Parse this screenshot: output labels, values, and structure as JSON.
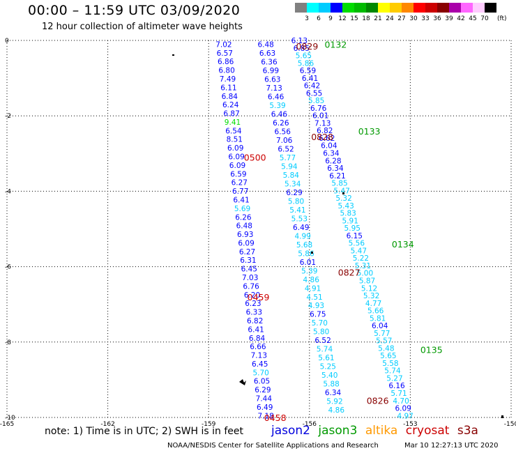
{
  "title": "00:00 – 11:59 UTC 03/09/2020",
  "subtitle": "12 hour collection of altimeter wave heights",
  "legend": {
    "colors": [
      "#808080",
      "#00ffff",
      "#00ccff",
      "#0000ff",
      "#00dd00",
      "#00bb00",
      "#008800",
      "#ffff00",
      "#ffcc00",
      "#ff8800",
      "#ff0000",
      "#cc0000",
      "#880000",
      "#aa00aa",
      "#ff66ff",
      "#ffccff",
      "#000000"
    ],
    "labels": [
      "3",
      "6",
      "9",
      "12",
      "15",
      "18",
      "21",
      "24",
      "27",
      "30",
      "33",
      "36",
      "39",
      "42",
      "45",
      "70"
    ],
    "unit": "(ft)"
  },
  "axes": {
    "x_ticks": [
      "-165",
      "-162",
      "-159",
      "-156",
      "-153",
      "-150"
    ],
    "y_ticks": [
      "0",
      "-2",
      "-4",
      "-6",
      "-8",
      "-10"
    ]
  },
  "satellite_colors": {
    "jason2": "#0000dd",
    "jason3": "#009900",
    "altika": "#ff9900",
    "cryosat": "#cc0000",
    "s3a": "#880000"
  },
  "time_labels": [
    {
      "text": "0132",
      "sat": "jason3",
      "lon": -155.55,
      "lat": -0.1
    },
    {
      "text": "0829",
      "sat": "s3a",
      "lon": -156.4,
      "lat": -0.15
    },
    {
      "text": "0133",
      "sat": "jason3",
      "lon": -154.55,
      "lat": -2.4
    },
    {
      "text": "0828",
      "sat": "s3a",
      "lon": -155.95,
      "lat": -2.55
    },
    {
      "text": "0500",
      "sat": "cryosat",
      "lon": -157.95,
      "lat": -3.1
    },
    {
      "text": "0134",
      "sat": "jason3",
      "lon": -153.55,
      "lat": -5.4
    },
    {
      "text": "0827",
      "sat": "s3a",
      "lon": -155.15,
      "lat": -6.15
    },
    {
      "text": "0459",
      "sat": "cryosat",
      "lon": -157.85,
      "lat": -6.8
    },
    {
      "text": "0135",
      "sat": "jason3",
      "lon": -152.7,
      "lat": -8.2
    },
    {
      "text": "0826",
      "sat": "s3a",
      "lon": -154.3,
      "lat": -9.55
    },
    {
      "text": "0458",
      "sat": "cryosat",
      "lon": -157.35,
      "lat": -10
    }
  ],
  "tracks": [
    {
      "name": "cryosat",
      "sat": "cryosat",
      "start": [
        -158.55,
        -0.1
      ],
      "end": [
        -157.3,
        -9.95
      ],
      "values": [
        "7.02",
        "6.57",
        "6.86",
        "6.80",
        "7.49",
        "6.11",
        "6.84",
        "6.24",
        "6.87",
        "9.41",
        "6.54",
        "8.51",
        "6.09",
        "6.09",
        "6.09",
        "6.59",
        "6.27",
        "6.77",
        "6.41",
        "5.69",
        "6.26",
        "6.48",
        "6.93",
        "6.09",
        "6.27",
        "6.31",
        "6.45",
        "7.03",
        "6.76",
        "6.20",
        "6.23",
        "6.33",
        "6.82",
        "6.41",
        "6.84",
        "6.66",
        "7.13",
        "6.45",
        "5.70",
        "6.05",
        "6.29",
        "7.44",
        "6.49",
        "7.18"
      ]
    },
    {
      "name": "s3a",
      "sat": "s3a",
      "start": [
        -157.3,
        -0.1
      ],
      "end": [
        -155.2,
        -9.8
      ],
      "values": [
        "6.48",
        "6.63",
        "6.36",
        "6.99",
        "6.63",
        "7.13",
        "6.46",
        "5.39",
        "6.46",
        "6.26",
        "6.56",
        "7.06",
        "6.52",
        "5.77",
        "5.94",
        "5.84",
        "5.34",
        "6.29",
        "5.80",
        "5.41",
        "5.53",
        "6.49",
        "4.99",
        "5.68",
        "5.86",
        "6.01",
        "5.39",
        "4.86",
        "4.91",
        "4.51",
        "4.93",
        "6.75",
        "5.70",
        "5.80",
        "6.52",
        "5.74",
        "5.61",
        "5.25",
        "5.40",
        "5.88",
        "6.34",
        "5.92",
        "4.86"
      ]
    },
    {
      "name": "jason3",
      "sat": "jason3",
      "start": [
        -156.3,
        0
      ],
      "end": [
        -153.15,
        -9.95
      ],
      "values": [
        "6.13",
        "6.85",
        "5.65",
        "5.86",
        "6.59",
        "6.41",
        "6.42",
        "6.55",
        "5.85",
        "6.76",
        "6.01",
        "7.13",
        "6.82",
        "6.62",
        "6.04",
        "6.34",
        "6.28",
        "6.34",
        "6.21",
        "5.85",
        "5.47",
        "5.32",
        "5.43",
        "5.83",
        "5.91",
        "5.95",
        "6.15",
        "5.56",
        "5.47",
        "5.22",
        "5.31",
        "5.00",
        "5.87",
        "5.12",
        "5.32",
        "4.77",
        "5.66",
        "5.81",
        "6.04",
        "5.77",
        "5.57",
        "5.48",
        "5.65",
        "5.58",
        "5.74",
        "5.27",
        "6.16",
        "5.71",
        "4.70",
        "6.09",
        "4.97"
      ]
    }
  ]
}
